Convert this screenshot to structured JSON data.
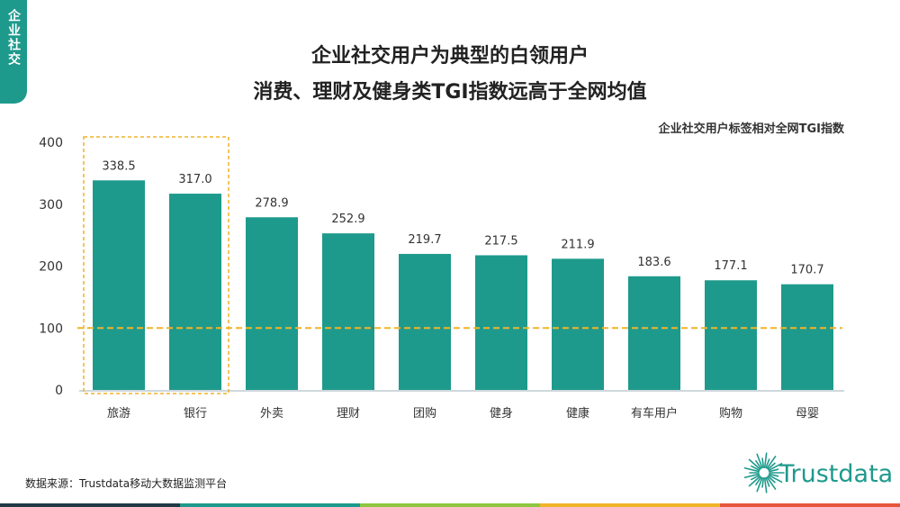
{
  "side_tab": "企业社交",
  "title_line1": "企业社交用户为典型的白领用户",
  "title_line2": "消费、理财及健身类TGI指数远高于全网均值",
  "source": "数据来源：Trustdata移动大数据监测平台",
  "logo_text": "Trustdata",
  "colors": {
    "accent": "#1e9a8c",
    "bar": "#1e9a8c",
    "highlight": "#f0b429",
    "bottom_bar": [
      "#1f3a45",
      "#1e9a8c",
      "#8dc63f",
      "#f0b429",
      "#e8553d"
    ]
  },
  "chart_data": {
    "type": "bar",
    "title": "企业社交用户标签相对全网TGI指数",
    "categories": [
      "旅游",
      "银行",
      "外卖",
      "理财",
      "团购",
      "健身",
      "健康",
      "有车用户",
      "购物",
      "母婴"
    ],
    "values": [
      338.5,
      317.0,
      278.9,
      252.9,
      219.7,
      217.5,
      211.9,
      183.6,
      177.1,
      170.7
    ],
    "value_labels": [
      "338.5",
      "317.0",
      "278.9",
      "252.9",
      "219.7",
      "217.5",
      "211.9",
      "183.6",
      "177.1",
      "170.7"
    ],
    "yticks": [
      0,
      100,
      200,
      300,
      400
    ],
    "ylim": [
      0,
      400
    ],
    "xlabel": "",
    "ylabel": "",
    "grid": false,
    "reference_line": 100,
    "highlighted_categories": [
      "旅游",
      "银行"
    ]
  }
}
